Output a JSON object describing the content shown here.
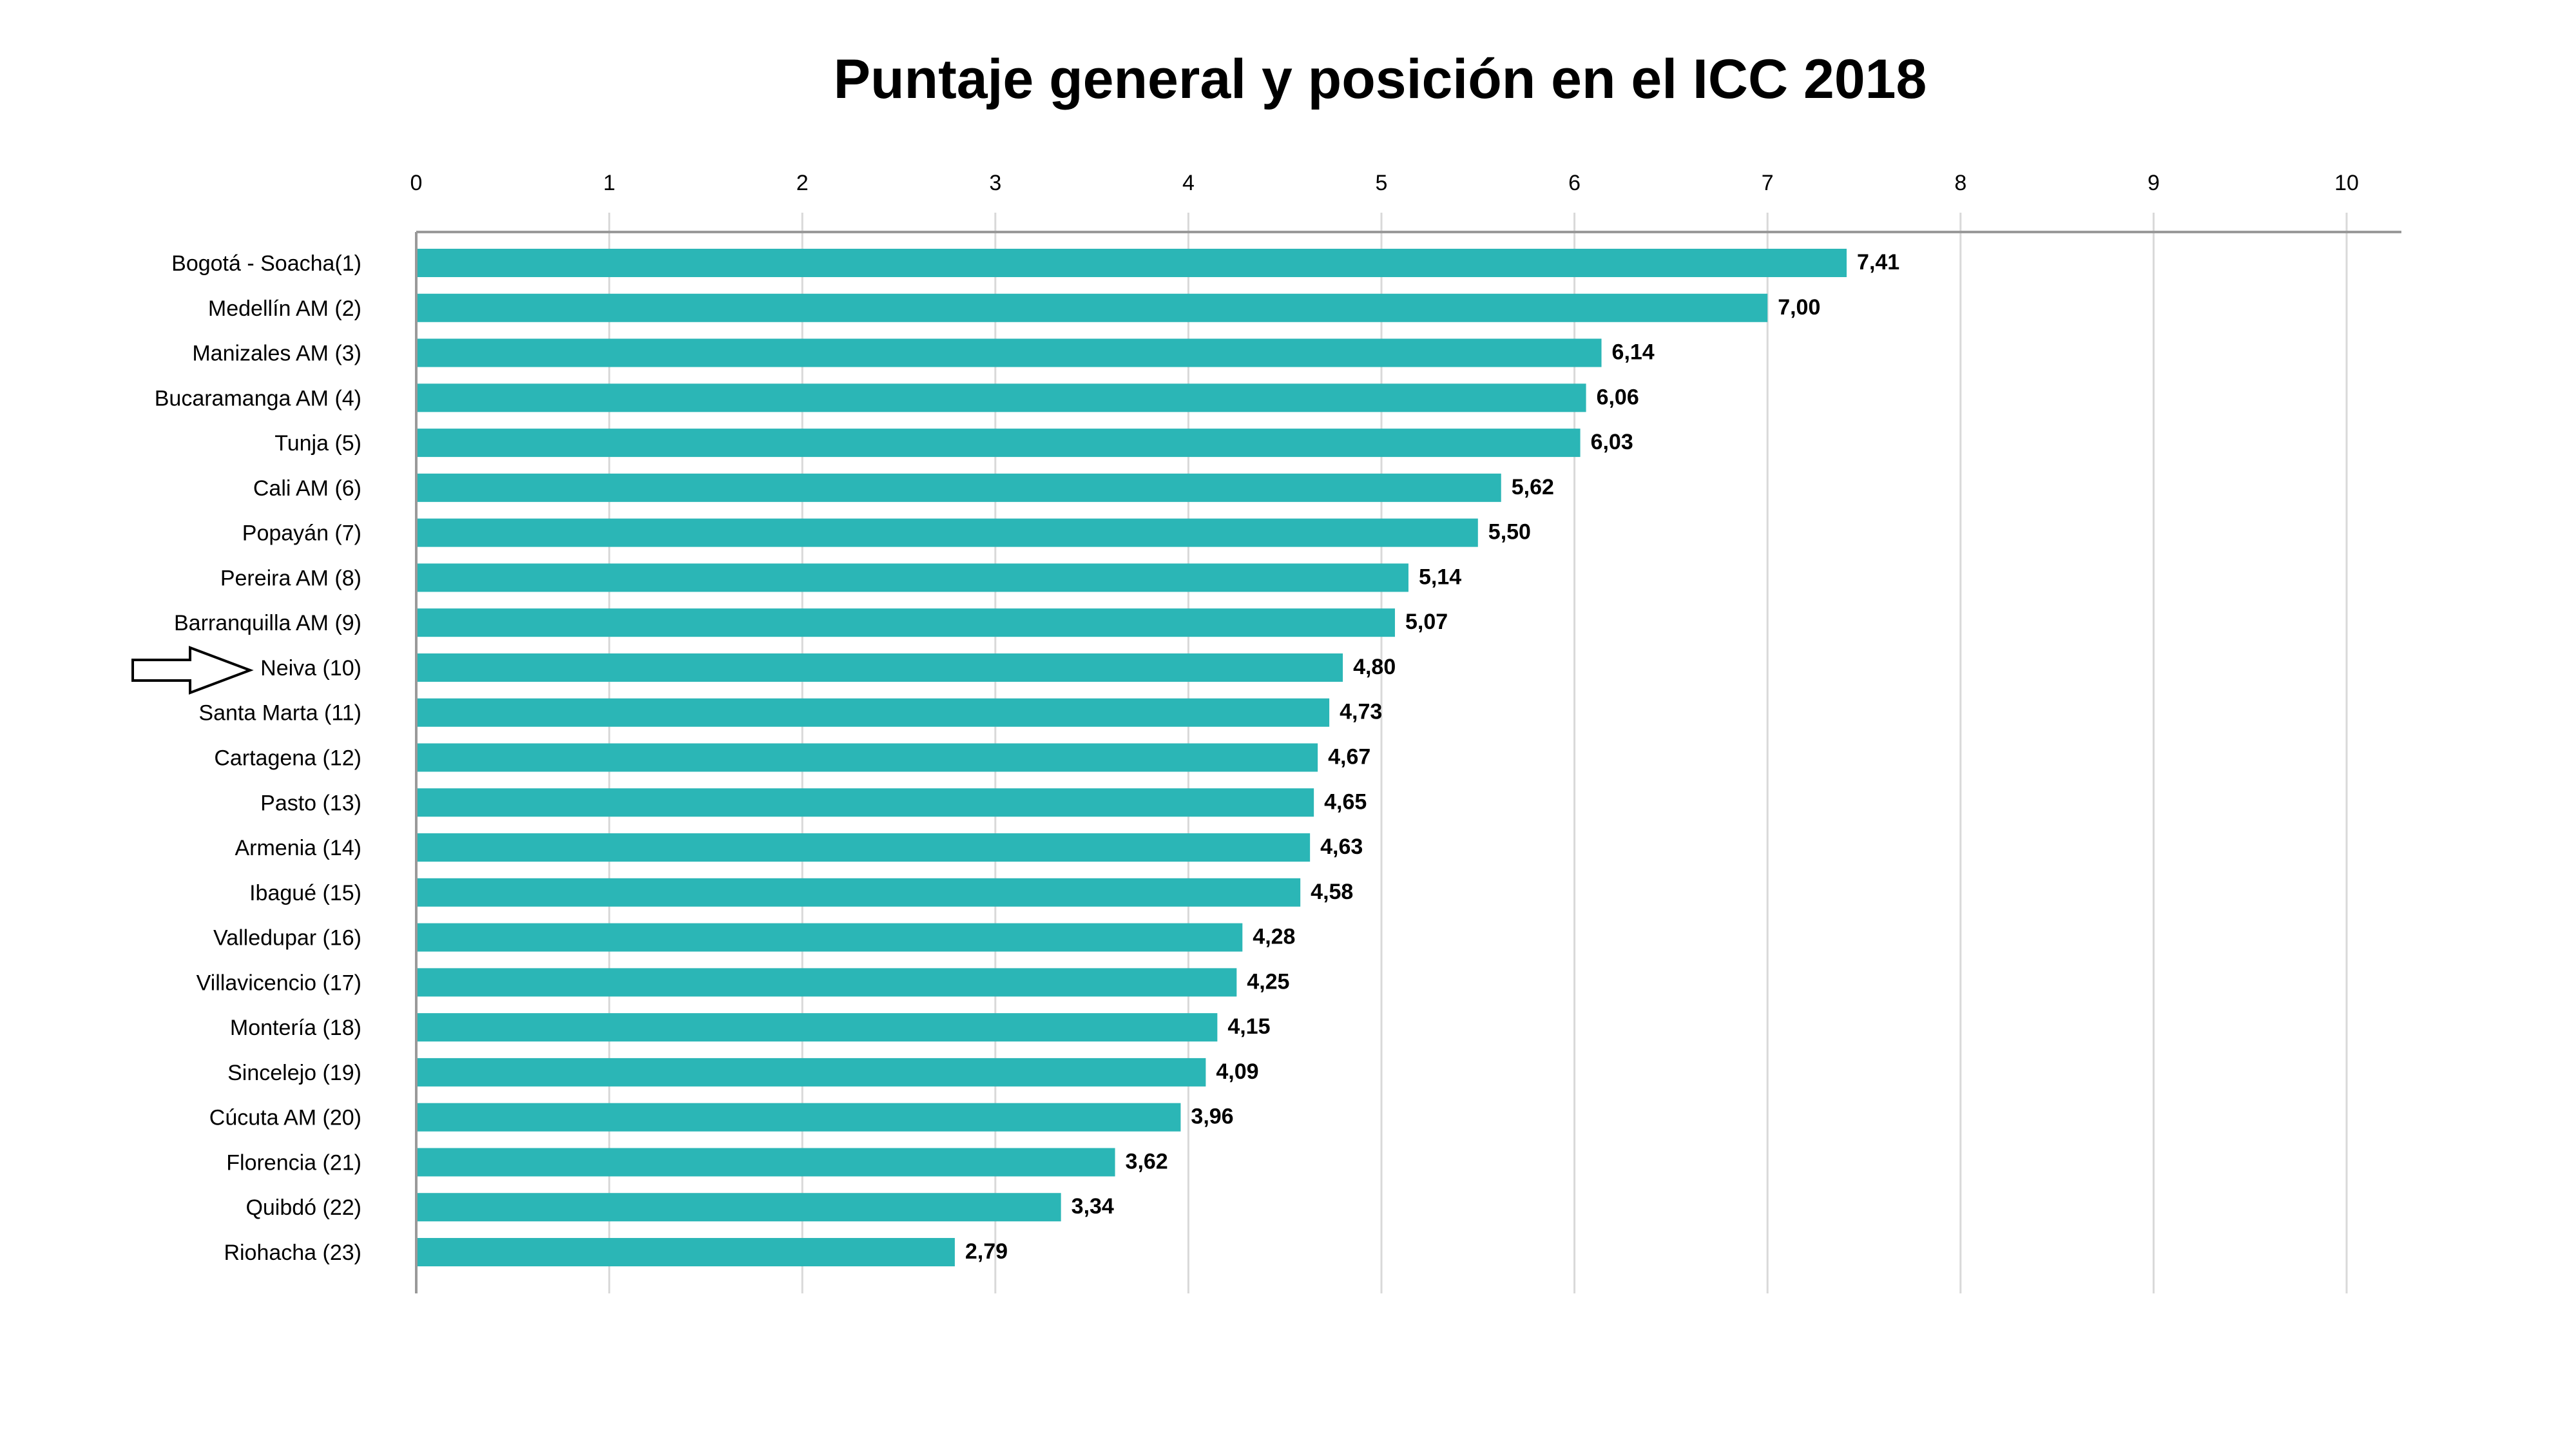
{
  "chart_data": {
    "type": "bar",
    "orientation": "horizontal",
    "title": "Puntaje general y posición en el ICC 2018",
    "xlabel": "",
    "ylabel": "",
    "xlim": [
      0,
      10
    ],
    "xticks": [
      "0",
      "1",
      "2",
      "3",
      "4",
      "5",
      "6",
      "7",
      "8",
      "9",
      "10"
    ],
    "x_axis_position": "top",
    "grid": true,
    "legend": "none",
    "bar_color": "#2bb6b6",
    "categories": [
      "Bogotá - Soacha(1)",
      "Medellín AM (2)",
      "Manizales AM (3)",
      "Bucaramanga AM (4)",
      "Tunja (5)",
      "Cali AM (6)",
      "Popayán (7)",
      "Pereira AM (8)",
      "Barranquilla AM (9)",
      "Neiva (10)",
      "Santa Marta (11)",
      "Cartagena (12)",
      "Pasto (13)",
      "Armenia (14)",
      "Ibagué (15)",
      "Valledupar (16)",
      "Villavicencio (17)",
      "Montería (18)",
      "Sincelejo (19)",
      "Cúcuta AM (20)",
      "Florencia (21)",
      "Quibdó (22)",
      "Riohacha (23)"
    ],
    "values": [
      7.41,
      7.0,
      6.14,
      6.06,
      6.03,
      5.62,
      5.5,
      5.14,
      5.07,
      4.8,
      4.73,
      4.67,
      4.65,
      4.63,
      4.58,
      4.28,
      4.25,
      4.15,
      4.09,
      3.96,
      3.62,
      3.34,
      2.79
    ],
    "value_labels": [
      "7,41",
      "7,00",
      "6,14",
      "6,06",
      "6,03",
      "5,62",
      "5,50",
      "5,14",
      "5,07",
      "4,80",
      "4,73",
      "4,67",
      "4,65",
      "4,63",
      "4,58",
      "4,28",
      "4,25",
      "4,15",
      "4,09",
      "3,96",
      "3,62",
      "3,34",
      "2,79"
    ],
    "annotations": [
      {
        "type": "arrow",
        "points_to": "Neiva (10)"
      }
    ]
  }
}
